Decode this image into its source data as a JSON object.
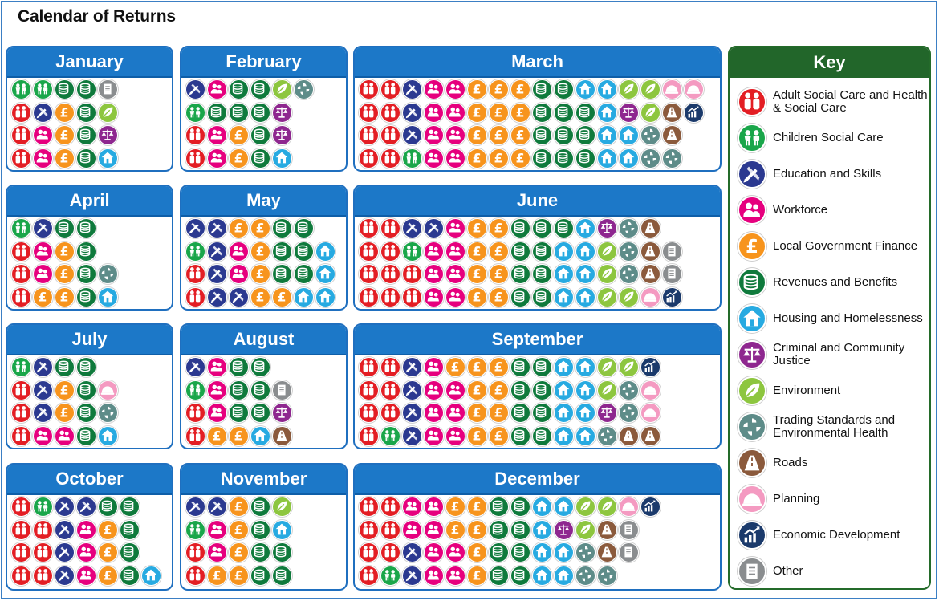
{
  "title": "Calendar of Returns",
  "key": {
    "title": "Key",
    "items": [
      {
        "code": "asc",
        "label": "Adult Social Care and Health & Social Care",
        "color": "#e31e24",
        "icon": "adults-icon"
      },
      {
        "code": "csc",
        "label": "Children Social Care",
        "color": "#1aa64a",
        "icon": "children-icon"
      },
      {
        "code": "edu",
        "label": "Education and Skills",
        "color": "#2b3990",
        "icon": "pencil-ruler-icon"
      },
      {
        "code": "wf",
        "label": "Workforce",
        "color": "#e6007e",
        "icon": "people-icon"
      },
      {
        "code": "lgf",
        "label": "Local Government Finance",
        "color": "#f7941d",
        "icon": "pound-icon"
      },
      {
        "code": "rb",
        "label": "Revenues and Benefits",
        "color": "#0f7a3c",
        "icon": "coins-icon"
      },
      {
        "code": "hh",
        "label": "Housing and Homelessness",
        "color": "#27aae1",
        "icon": "house-icon"
      },
      {
        "code": "cc",
        "label": "Criminal and Community Justice",
        "color": "#8e278f",
        "icon": "scales-icon"
      },
      {
        "code": "env",
        "label": "Environment",
        "color": "#8dc63f",
        "icon": "leaf-icon"
      },
      {
        "code": "ts",
        "label": "Trading Standards and Environmental Health",
        "color": "#5e8c89",
        "icon": "swirl-icon"
      },
      {
        "code": "rd",
        "label": "Roads",
        "color": "#8b5a3c",
        "icon": "road-icon"
      },
      {
        "code": "pl",
        "label": "Planning",
        "color": "#f49ac1",
        "icon": "hardhat-icon"
      },
      {
        "code": "ed",
        "label": "Economic Development",
        "color": "#1b3a6b",
        "icon": "growth-chart-icon"
      },
      {
        "code": "oth",
        "label": "Other",
        "color": "#8a8d8f",
        "icon": "document-icon"
      }
    ]
  },
  "months": [
    {
      "name": "January",
      "rows": [
        [
          "csc",
          "csc",
          "rb",
          "rb",
          "oth"
        ],
        [
          "asc",
          "edu",
          "lgf",
          "rb",
          "env"
        ],
        [
          "asc",
          "wf",
          "lgf",
          "rb",
          "cc"
        ],
        [
          "asc",
          "wf",
          "lgf",
          "rb",
          "hh"
        ]
      ]
    },
    {
      "name": "February",
      "rows": [
        [
          "edu",
          "wf",
          "rb",
          "rb",
          "env",
          "ts"
        ],
        [
          "csc",
          "rb",
          "rb",
          "rb",
          "cc"
        ],
        [
          "asc",
          "wf",
          "lgf",
          "rb",
          "cc"
        ],
        [
          "asc",
          "wf",
          "lgf",
          "rb",
          "hh"
        ]
      ]
    },
    {
      "name": "March",
      "rows": [
        [
          "asc",
          "asc",
          "edu",
          "wf",
          "wf",
          "lgf",
          "lgf",
          "lgf",
          "rb",
          "rb",
          "hh",
          "hh",
          "env",
          "env",
          "pl",
          "pl"
        ],
        [
          "asc",
          "asc",
          "edu",
          "wf",
          "wf",
          "lgf",
          "lgf",
          "lgf",
          "rb",
          "rb",
          "rb",
          "hh",
          "cc",
          "env",
          "rd",
          "ed"
        ],
        [
          "asc",
          "asc",
          "edu",
          "wf",
          "wf",
          "lgf",
          "lgf",
          "lgf",
          "rb",
          "rb",
          "rb",
          "hh",
          "hh",
          "ts",
          "rd"
        ],
        [
          "asc",
          "asc",
          "csc",
          "wf",
          "wf",
          "lgf",
          "lgf",
          "lgf",
          "rb",
          "rb",
          "rb",
          "hh",
          "hh",
          "ts",
          "ts"
        ]
      ]
    },
    {
      "name": "April",
      "rows": [
        [
          "csc",
          "edu",
          "rb",
          "rb"
        ],
        [
          "asc",
          "wf",
          "lgf",
          "rb"
        ],
        [
          "asc",
          "wf",
          "lgf",
          "rb",
          "ts"
        ],
        [
          "asc",
          "lgf",
          "lgf",
          "rb",
          "hh"
        ]
      ]
    },
    {
      "name": "May",
      "rows": [
        [
          "edu",
          "edu",
          "lgf",
          "lgf",
          "rb",
          "rb"
        ],
        [
          "csc",
          "edu",
          "wf",
          "lgf",
          "rb",
          "rb",
          "hh"
        ],
        [
          "asc",
          "edu",
          "wf",
          "lgf",
          "rb",
          "rb",
          "hh"
        ],
        [
          "asc",
          "edu",
          "edu",
          "lgf",
          "lgf",
          "hh",
          "hh"
        ]
      ]
    },
    {
      "name": "June",
      "rows": [
        [
          "asc",
          "asc",
          "edu",
          "edu",
          "wf",
          "lgf",
          "lgf",
          "rb",
          "rb",
          "rb",
          "hh",
          "cc",
          "ts",
          "rd"
        ],
        [
          "asc",
          "asc",
          "csc",
          "wf",
          "wf",
          "lgf",
          "lgf",
          "rb",
          "rb",
          "hh",
          "hh",
          "env",
          "ts",
          "rd",
          "oth"
        ],
        [
          "asc",
          "asc",
          "asc",
          "wf",
          "wf",
          "lgf",
          "lgf",
          "rb",
          "rb",
          "hh",
          "hh",
          "env",
          "ts",
          "rd",
          "oth"
        ],
        [
          "asc",
          "asc",
          "asc",
          "wf",
          "wf",
          "lgf",
          "lgf",
          "rb",
          "rb",
          "hh",
          "hh",
          "env",
          "env",
          "pl",
          "ed"
        ]
      ]
    },
    {
      "name": "July",
      "rows": [
        [
          "csc",
          "edu",
          "rb",
          "rb"
        ],
        [
          "asc",
          "edu",
          "lgf",
          "rb",
          "pl"
        ],
        [
          "asc",
          "edu",
          "lgf",
          "rb",
          "ts"
        ],
        [
          "asc",
          "wf",
          "wf",
          "rb",
          "hh"
        ]
      ]
    },
    {
      "name": "August",
      "rows": [
        [
          "edu",
          "wf",
          "rb",
          "rb"
        ],
        [
          "csc",
          "wf",
          "rb",
          "rb",
          "oth"
        ],
        [
          "asc",
          "wf",
          "rb",
          "rb",
          "cc"
        ],
        [
          "asc",
          "lgf",
          "lgf",
          "hh",
          "rd"
        ]
      ]
    },
    {
      "name": "September",
      "rows": [
        [
          "asc",
          "asc",
          "edu",
          "wf",
          "lgf",
          "lgf",
          "lgf",
          "rb",
          "rb",
          "hh",
          "hh",
          "env",
          "env",
          "ed"
        ],
        [
          "asc",
          "asc",
          "edu",
          "wf",
          "wf",
          "lgf",
          "lgf",
          "rb",
          "rb",
          "hh",
          "hh",
          "env",
          "ts",
          "pl"
        ],
        [
          "asc",
          "asc",
          "edu",
          "wf",
          "wf",
          "lgf",
          "lgf",
          "rb",
          "rb",
          "hh",
          "hh",
          "cc",
          "ts",
          "pl"
        ],
        [
          "asc",
          "csc",
          "edu",
          "wf",
          "wf",
          "lgf",
          "lgf",
          "rb",
          "rb",
          "hh",
          "hh",
          "ts",
          "rd",
          "rd"
        ]
      ]
    },
    {
      "name": "October",
      "rows": [
        [
          "asc",
          "csc",
          "edu",
          "edu",
          "rb",
          "rb"
        ],
        [
          "asc",
          "asc",
          "edu",
          "wf",
          "lgf",
          "rb"
        ],
        [
          "asc",
          "asc",
          "edu",
          "wf",
          "lgf",
          "rb"
        ],
        [
          "asc",
          "asc",
          "edu",
          "wf",
          "lgf",
          "rb",
          "hh"
        ]
      ]
    },
    {
      "name": "November",
      "rows": [
        [
          "edu",
          "edu",
          "lgf",
          "rb",
          "env"
        ],
        [
          "csc",
          "wf",
          "lgf",
          "rb",
          "hh"
        ],
        [
          "asc",
          "wf",
          "lgf",
          "rb",
          "rb"
        ],
        [
          "asc",
          "lgf",
          "lgf",
          "rb",
          "rb"
        ]
      ]
    },
    {
      "name": "December",
      "rows": [
        [
          "asc",
          "asc",
          "wf",
          "wf",
          "lgf",
          "lgf",
          "rb",
          "rb",
          "hh",
          "hh",
          "env",
          "env",
          "pl",
          "ed"
        ],
        [
          "asc",
          "asc",
          "wf",
          "wf",
          "lgf",
          "lgf",
          "rb",
          "rb",
          "hh",
          "cc",
          "env",
          "rd",
          "oth"
        ],
        [
          "asc",
          "asc",
          "edu",
          "wf",
          "wf",
          "lgf",
          "rb",
          "rb",
          "hh",
          "hh",
          "ts",
          "rd",
          "oth"
        ],
        [
          "asc",
          "csc",
          "edu",
          "wf",
          "wf",
          "lgf",
          "rb",
          "rb",
          "hh",
          "hh",
          "ts",
          "ts"
        ]
      ]
    }
  ]
}
